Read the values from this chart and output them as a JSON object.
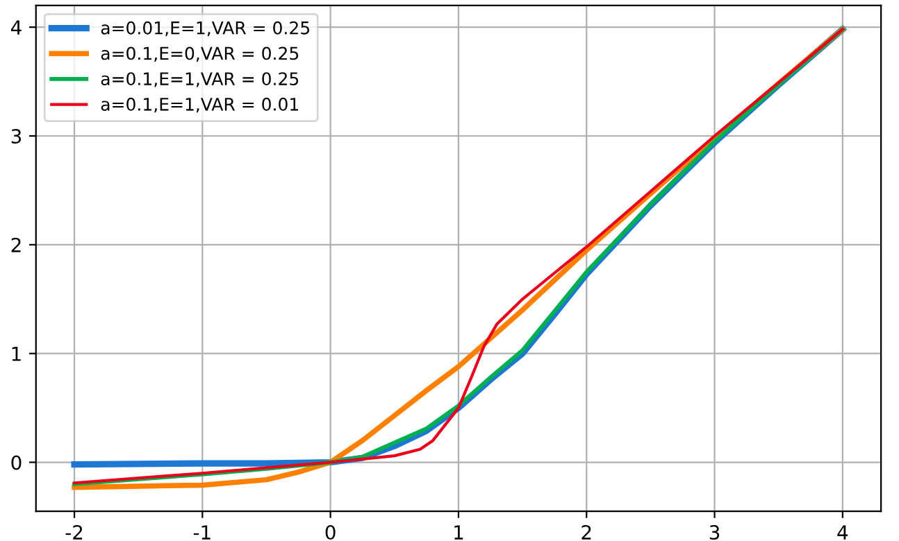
{
  "chart_data": {
    "type": "line",
    "xlim": [
      -2.3,
      4.3
    ],
    "ylim": [
      -0.45,
      4.2
    ],
    "xticks": [
      -2,
      -1,
      0,
      1,
      2,
      3,
      4
    ],
    "yticks": [
      0,
      1,
      2,
      3,
      4
    ],
    "grid": true,
    "legend": "top left",
    "line_style": "solid",
    "marker": "none",
    "series": [
      {
        "name": "a=0.01,E=1,VAR = 0.25",
        "color": "#1f77d4",
        "x": [
          -2,
          -1,
          -0.5,
          0,
          0.25,
          0.5,
          0.75,
          1,
          1.25,
          1.5,
          1.75,
          2,
          2.5,
          3,
          3.5,
          4
        ],
        "values": [
          -0.02,
          -0.01,
          -0.01,
          0,
          0.04,
          0.15,
          0.29,
          0.5,
          0.76,
          1.0,
          1.36,
          1.73,
          2.36,
          2.94,
          3.47,
          3.98
        ]
      },
      {
        "name": "a=0.1,E=0,VAR = 0.25",
        "color": "#ff8000",
        "x": [
          -2,
          -1,
          -0.5,
          -0.25,
          0,
          0.25,
          0.5,
          0.75,
          1,
          1.25,
          1.5,
          2,
          2.5,
          3,
          3.5,
          4
        ],
        "values": [
          -0.23,
          -0.21,
          -0.16,
          -0.09,
          0,
          0.2,
          0.43,
          0.66,
          0.88,
          1.14,
          1.4,
          1.95,
          2.47,
          2.98,
          3.48,
          3.98
        ]
      },
      {
        "name": "a=0.1,E=1,VAR = 0.25",
        "color": "#00b050",
        "x": [
          -2,
          -1,
          -0.5,
          0,
          0.25,
          0.5,
          0.75,
          1,
          1.25,
          1.5,
          1.75,
          2,
          2.5,
          3,
          3.5,
          4
        ],
        "values": [
          -0.2,
          -0.11,
          -0.06,
          0,
          0.05,
          0.18,
          0.31,
          0.52,
          0.78,
          1.03,
          1.39,
          1.75,
          2.37,
          2.95,
          3.47,
          3.98
        ]
      },
      {
        "name": "a=0.1,E=1,VAR = 0.01",
        "color": "#e8001c",
        "x": [
          -2,
          -1,
          -0.5,
          0,
          0.25,
          0.5,
          0.7,
          0.8,
          0.9,
          1,
          1.1,
          1.2,
          1.3,
          1.5,
          2,
          2.5,
          3,
          3.5,
          4
        ],
        "values": [
          -0.19,
          -0.1,
          -0.05,
          0,
          0.03,
          0.06,
          0.12,
          0.2,
          0.35,
          0.5,
          0.78,
          1.07,
          1.27,
          1.5,
          1.98,
          2.49,
          3.0,
          3.49,
          3.98
        ]
      }
    ]
  }
}
